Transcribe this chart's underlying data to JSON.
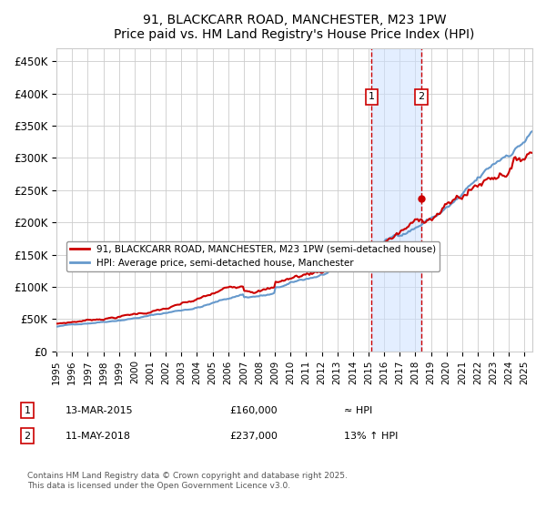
{
  "title": "91, BLACKCARR ROAD, MANCHESTER, M23 1PW",
  "subtitle": "Price paid vs. HM Land Registry's House Price Index (HPI)",
  "ylabel_ticks": [
    "£0",
    "£50K",
    "£100K",
    "£150K",
    "£200K",
    "£250K",
    "£300K",
    "£350K",
    "£400K",
    "£450K"
  ],
  "ytick_values": [
    0,
    50000,
    100000,
    150000,
    200000,
    250000,
    300000,
    350000,
    400000,
    450000
  ],
  "ylim": [
    0,
    470000
  ],
  "xlim_start": 1995.0,
  "xlim_end": 2025.5,
  "xtick_years": [
    1995,
    1996,
    1997,
    1998,
    1999,
    2000,
    2001,
    2002,
    2003,
    2004,
    2005,
    2006,
    2007,
    2008,
    2009,
    2010,
    2011,
    2012,
    2013,
    2014,
    2015,
    2016,
    2017,
    2018,
    2019,
    2020,
    2021,
    2022,
    2023,
    2024,
    2025
  ],
  "red_line_color": "#cc0000",
  "blue_line_color": "#6699cc",
  "blue_fill_color": "#cce0ff",
  "marker1_x": 2015.2,
  "marker1_y": 160000,
  "marker2_x": 2018.37,
  "marker2_y": 237000,
  "marker1_label": "1",
  "marker2_label": "2",
  "shade_x1": 2015.2,
  "shade_x2": 2018.37,
  "legend_line1": "91, BLACKCARR ROAD, MANCHESTER, M23 1PW (semi-detached house)",
  "legend_line2": "HPI: Average price, semi-detached house, Manchester",
  "table_row1": [
    "1",
    "13-MAR-2015",
    "£160,000",
    "≈ HPI"
  ],
  "table_row2": [
    "2",
    "11-MAY-2018",
    "£237,000",
    "13% ↑ HPI"
  ],
  "footer": "Contains HM Land Registry data © Crown copyright and database right 2025.\nThis data is licensed under the Open Government Licence v3.0.",
  "background_color": "#ffffff",
  "grid_color": "#cccccc"
}
